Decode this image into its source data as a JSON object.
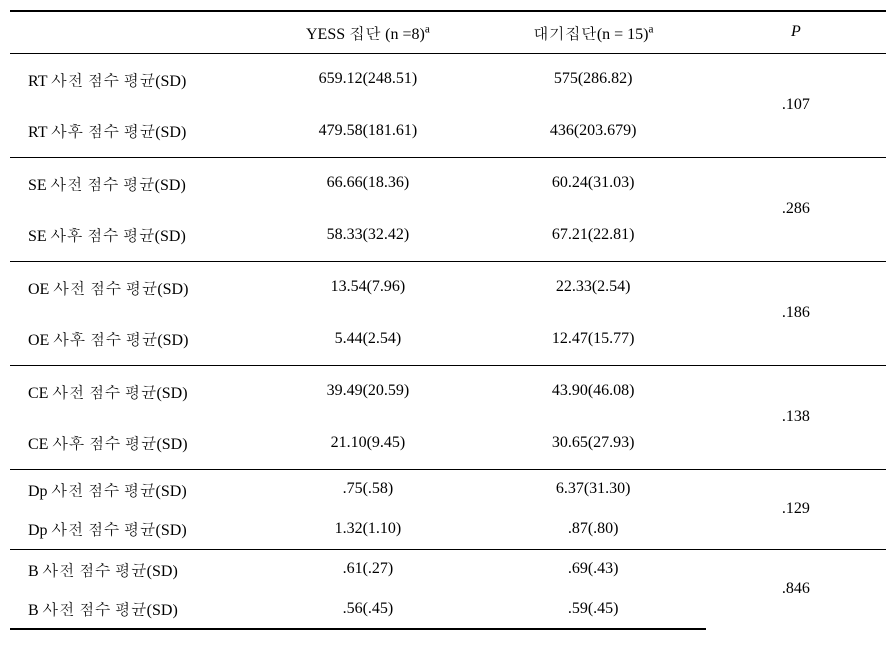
{
  "headers": {
    "blank": "",
    "yess": "YESS   집단 (n =8)",
    "yess_sup": "a",
    "wait": "대기집단(n = 15)",
    "wait_sup": "a",
    "p": "P"
  },
  "sections": [
    {
      "rows": [
        {
          "label": "RT 사전 점수 평균(SD)",
          "yess": "659.12(248.51)",
          "wait": "575(286.82)"
        },
        {
          "label": "RT 사후 점수 평균(SD)",
          "yess": "479.58(181.61)",
          "wait": "436(203.679)"
        }
      ],
      "p": ".107",
      "rowHeight": "tall"
    },
    {
      "rows": [
        {
          "label": "SE 사전 점수 평균(SD)",
          "yess": "66.66(18.36)",
          "wait": "60.24(31.03)"
        },
        {
          "label": "SE 사후 점수 평균(SD)",
          "yess": "58.33(32.42)",
          "wait": "67.21(22.81)"
        }
      ],
      "p": ".286",
      "rowHeight": "tall"
    },
    {
      "rows": [
        {
          "label": "OE 사전 점수 평균(SD)",
          "yess": "13.54(7.96)",
          "wait": "22.33(2.54)"
        },
        {
          "label": "OE 사후 점수 평균(SD)",
          "yess": "5.44(2.54)",
          "wait": "12.47(15.77)"
        }
      ],
      "p": ".186",
      "rowHeight": "tall"
    },
    {
      "rows": [
        {
          "label": "CE 사전 점수 평균(SD)",
          "yess": "39.49(20.59)",
          "wait": "43.90(46.08)"
        },
        {
          "label": "CE 사후 점수 평균(SD)",
          "yess": "21.10(9.45)",
          "wait": "30.65(27.93)"
        }
      ],
      "p": ".138",
      "rowHeight": "tall"
    },
    {
      "rows": [
        {
          "label": "Dp 사전 점수 평균(SD)",
          "yess": ".75(.58)",
          "wait": "6.37(31.30)"
        },
        {
          "label": "Dp 사전 점수 평균(SD)",
          "yess": "1.32(1.10)",
          "wait": ".87(.80)"
        }
      ],
      "p": ".129",
      "rowHeight": "short"
    },
    {
      "rows": [
        {
          "label": "B 사전 점수 평균(SD)",
          "yess": ".61(.27)",
          "wait": ".69(.43)"
        },
        {
          "label": "B 사전 점수 평균(SD)",
          "yess": ".56(.45)",
          "wait": ".59(.45)"
        }
      ],
      "p": ".846",
      "rowHeight": "short"
    }
  ]
}
